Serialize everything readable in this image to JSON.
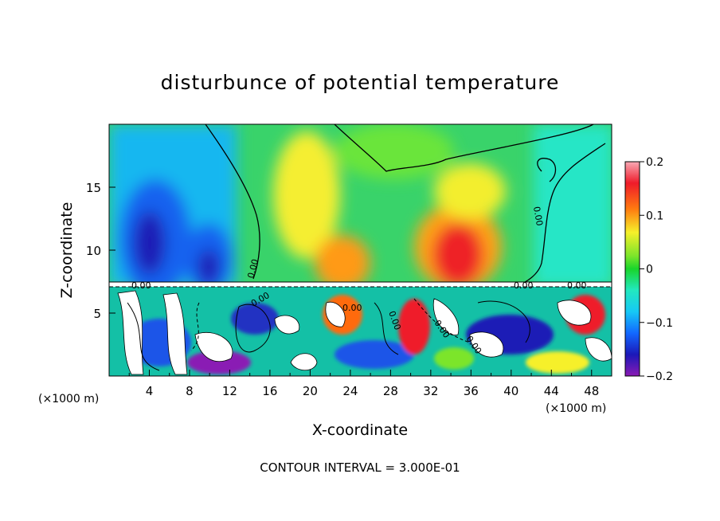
{
  "chart_data": {
    "type": "heatmap",
    "title": "disturbunce of potential temperature",
    "xlabel": "X-coordinate",
    "ylabel": "Z-coordinate",
    "x_unit_left": "(×1000 m)",
    "x_unit_right": "(×1000 m)",
    "footer": "CONTOUR INTERVAL = 3.000E-01",
    "xlim": [
      0,
      50
    ],
    "ylim": [
      0,
      20
    ],
    "x_ticks": [
      "4",
      "8",
      "12",
      "16",
      "20",
      "24",
      "28",
      "32",
      "36",
      "40",
      "44",
      "48"
    ],
    "y_ticks": [
      "5",
      "10",
      "15"
    ],
    "contour_labels": [
      "0.00",
      "0.00",
      "0.00",
      "0.00",
      "0.00",
      "0.00",
      "0.00",
      "0.00",
      "0.00",
      "0.00"
    ],
    "colorbar": {
      "range": [
        -0.2,
        0.2
      ],
      "tick_labels": [
        "0.2",
        "0.1",
        "0",
        "−0.1",
        "−0.2"
      ],
      "colors": [
        "#f9a9b5",
        "#ef1b2a",
        "#ff7a10",
        "#f6f02a",
        "#7ce52b",
        "#19d52b",
        "#22e8c0",
        "#16c8f6",
        "#1268ff",
        "#1b18b8",
        "#8a1ab4"
      ]
    }
  }
}
